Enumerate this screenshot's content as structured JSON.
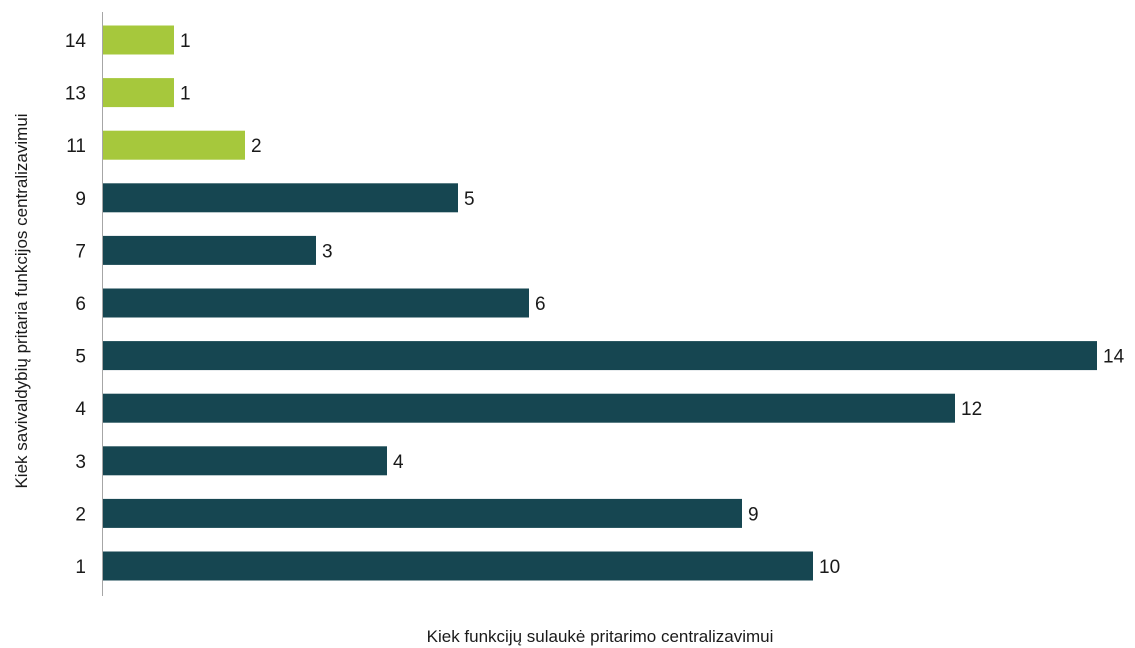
{
  "chart_data": {
    "type": "bar",
    "orientation": "horizontal",
    "categories": [
      "1",
      "2",
      "3",
      "4",
      "5",
      "6",
      "7",
      "9",
      "11",
      "13",
      "14"
    ],
    "values": [
      10,
      9,
      4,
      12,
      14,
      6,
      3,
      5,
      2,
      1,
      1
    ],
    "highlight": [
      false,
      false,
      false,
      false,
      false,
      false,
      false,
      false,
      true,
      true,
      true
    ],
    "colors": {
      "default": "#164651",
      "highlight": "#a6c83c"
    },
    "xlabel": "Kiek funkcijų sulaukė pritarimo centralizavimui",
    "ylabel": "Kiek savivaldybių pritaria funkcijos centralizavimui",
    "xlim": [
      0,
      14
    ],
    "grid": false,
    "legend": "none"
  }
}
